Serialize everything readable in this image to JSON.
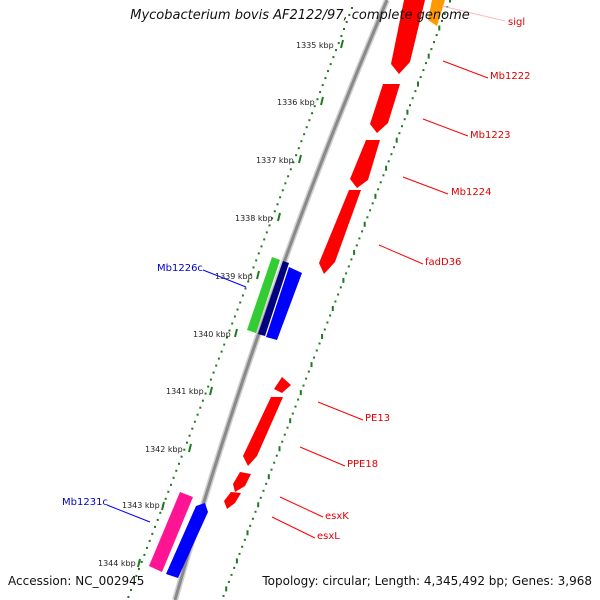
{
  "title": "Mycobacterium bovis AF2122/97, complete genome",
  "footer": {
    "accession": "Accession: NC_002945",
    "stats": "Topology: circular; Length: 4,345,492 bp; Genes: 3,968"
  },
  "colors": {
    "backbone": "#8a8a8a",
    "gc_dots": "#1e7a1e",
    "forward_gene": "#ff0000",
    "reverse_gene": "#0000ff",
    "green_feature": "#33cc33",
    "navy_feature": "#000080",
    "pink_feature": "#ff1493",
    "orange_feature": "#ff9900",
    "red_label": "#e00000",
    "blue_label": "#0000cc"
  },
  "ticks": [
    "1335 kbp",
    "1336 kbp",
    "1337 kbp",
    "1338 kbp",
    "1339 kbp",
    "1340 kbp",
    "1341 kbp",
    "1342 kbp",
    "1343 kbp",
    "1344 kbp"
  ],
  "gene_labels": {
    "sigl": "sigl",
    "mb1222": "Mb1222",
    "mb1223": "Mb1223",
    "mb1224": "Mb1224",
    "fadd36": "fadD36",
    "pe13": "PE13",
    "ppe18": "PPE18",
    "esxk": "esxK",
    "esxl": "esxL",
    "mb1226c": "Mb1226c",
    "mb1231c": "Mb1231c"
  }
}
